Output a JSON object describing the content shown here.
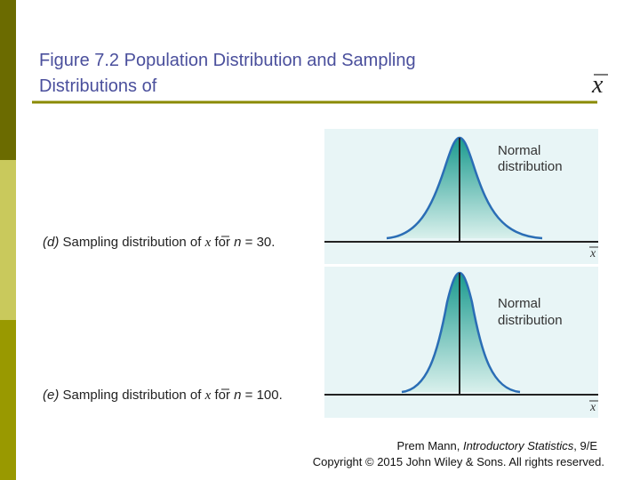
{
  "header": {
    "title_line1": "Figure 7.2 Population Distribution and Sampling",
    "title_line2": "Distributions of",
    "title_symbol": "x"
  },
  "panels": [
    {
      "caption": {
        "letter": "(d)",
        "text1": " Sampling distribution of ",
        "symbol": "x",
        "text2": " for ",
        "var": "n",
        "text3": " = 30."
      },
      "label_line1": "Normal",
      "label_line2": "distribution",
      "axis_label": "x"
    },
    {
      "caption": {
        "letter": "(e)",
        "text1": " Sampling distribution of ",
        "symbol": "x",
        "text2": " for ",
        "var": "n",
        "text3": " = 100."
      },
      "label_line1": "Normal",
      "label_line2": "distribution",
      "axis_label": "x"
    }
  ],
  "footer": {
    "author": "Prem Mann, ",
    "book": "Introductory Statistics",
    "edition": ", 9/E",
    "copyright": "Copyright © 2015 John Wiley & Sons. All rights reserved."
  }
}
